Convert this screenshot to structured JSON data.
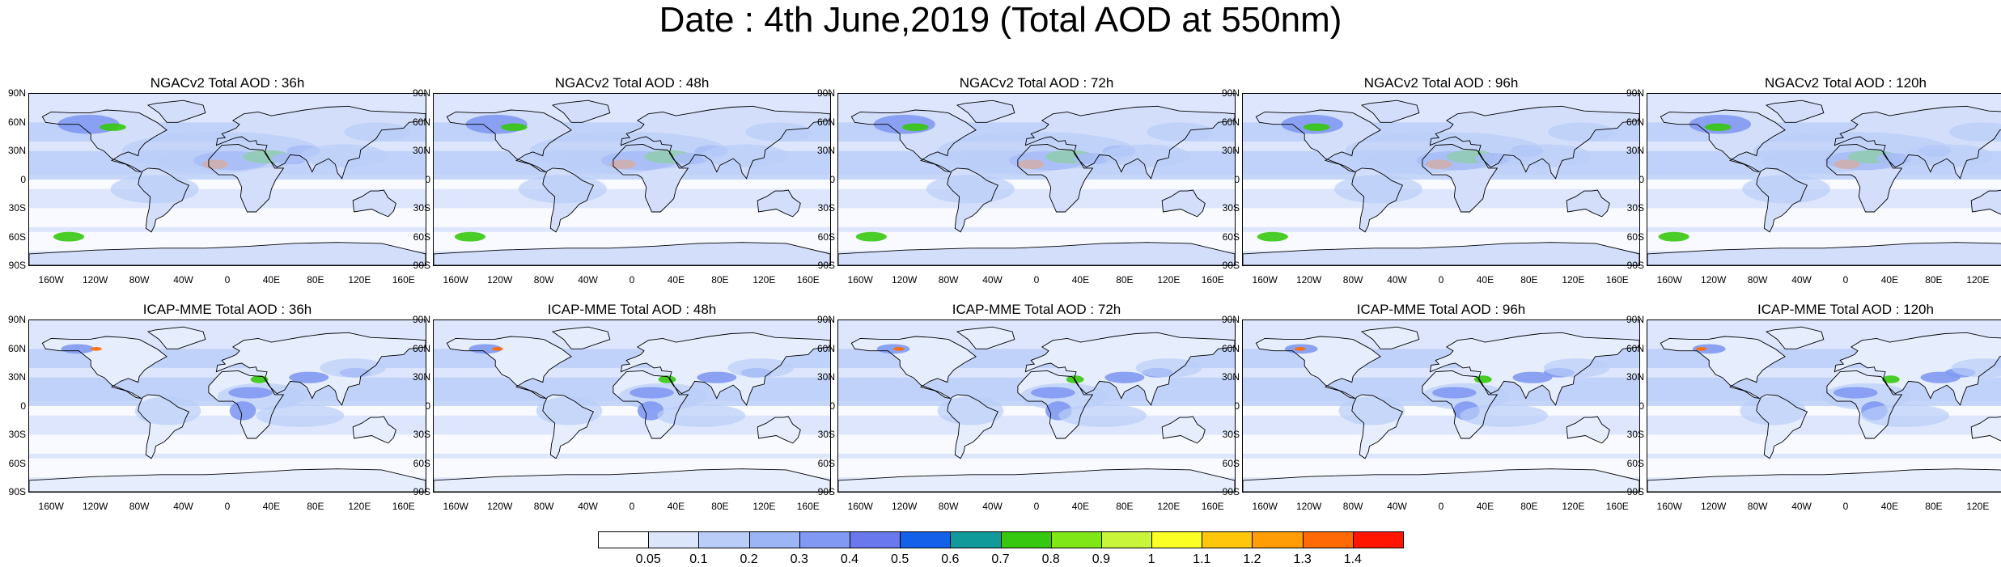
{
  "title": "Date : 4th June,2019 (Total AOD at 550nm)",
  "lat_labels": [
    "90N",
    "60N",
    "30N",
    "0",
    "30S",
    "60S",
    "90S"
  ],
  "lon_labels": [
    "160W",
    "120W",
    "80W",
    "40W",
    "0",
    "40E",
    "80E",
    "120E",
    "160E"
  ],
  "rows": [
    {
      "model": "NGACv2",
      "panels": [
        {
          "title": "NGACv2 Total AOD : 36h"
        },
        {
          "title": "NGACv2 Total AOD : 48h"
        },
        {
          "title": "NGACv2 Total AOD : 72h"
        },
        {
          "title": "NGACv2 Total AOD : 96h"
        },
        {
          "title": "NGACv2 Total AOD : 120h"
        }
      ]
    },
    {
      "model": "ICAP-MME",
      "panels": [
        {
          "title": "ICAP-MME Total AOD : 36h"
        },
        {
          "title": "ICAP-MME Total AOD : 48h"
        },
        {
          "title": "ICAP-MME Total AOD : 72h"
        },
        {
          "title": "ICAP-MME Total AOD : 96h"
        },
        {
          "title": "ICAP-MME Total AOD : 120h"
        }
      ]
    }
  ],
  "colorbar": {
    "labels": [
      "0.05",
      "0.1",
      "0.2",
      "0.3",
      "0.4",
      "0.5",
      "0.6",
      "0.7",
      "0.8",
      "0.9",
      "1",
      "1.1",
      "1.2",
      "1.3",
      "1.4"
    ],
    "colors": [
      "#ffffff",
      "#dbe6fb",
      "#b9cdf8",
      "#9cb5f5",
      "#8199f2",
      "#6a78ee",
      "#1560e8",
      "#119a9a",
      "#36c80e",
      "#7fe617",
      "#c8f53a",
      "#fbff24",
      "#ffc60c",
      "#ff9d07",
      "#ff6a06",
      "#ff1500"
    ]
  },
  "palette": {
    "ocean_low": "#ffffff",
    "ocean_mid": "#dde6fc",
    "ocean_high": "#b9cdf8",
    "land_high": "#8fa8f2",
    "coast": "#000000"
  }
}
